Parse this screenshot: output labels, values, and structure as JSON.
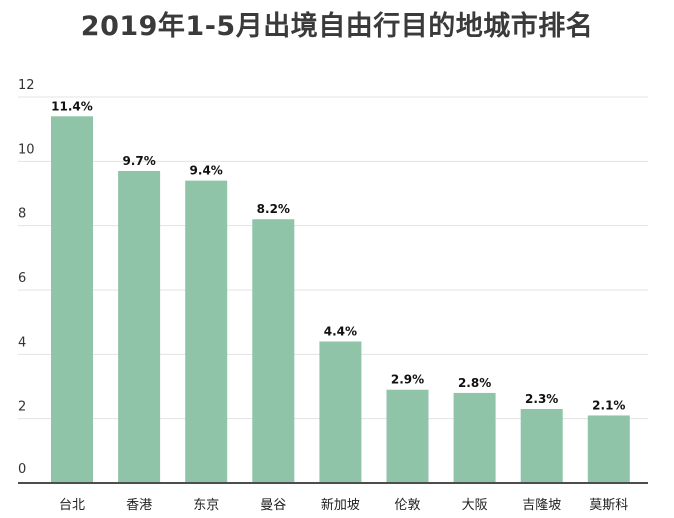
{
  "chart_data": {
    "type": "bar",
    "title": "2019年1-5月出境自由行目的地城市排名",
    "categories": [
      "台北",
      "香港",
      "东京",
      "曼谷",
      "新加坡",
      "伦敦",
      "大阪",
      "吉隆坡",
      "莫斯科"
    ],
    "values": [
      11.4,
      9.7,
      9.4,
      8.2,
      4.4,
      2.9,
      2.8,
      2.3,
      2.1
    ],
    "data_labels": [
      "11.4%",
      "9.7%",
      "9.4%",
      "8.2%",
      "4.4%",
      "2.9%",
      "2.8%",
      "2.3%",
      "2.1%"
    ],
    "yticks": [
      0,
      2,
      4,
      6,
      8,
      10,
      12
    ],
    "ylim": [
      0,
      12
    ],
    "grid": true,
    "bar_color": "#8fc4a9",
    "axis_color": "#4d4d4d",
    "grid_color": "#e3e3e3"
  }
}
